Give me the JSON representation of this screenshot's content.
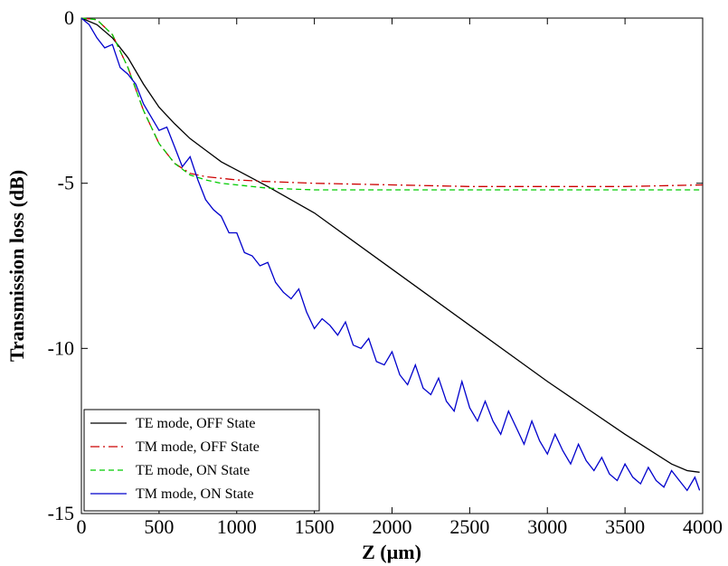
{
  "chart_data": {
    "type": "line",
    "xlabel": "Z (µm)",
    "ylabel": "Transmission loss (dB)",
    "xlim": [
      0,
      4000
    ],
    "ylim": [
      -15,
      0
    ],
    "xticks": [
      0,
      500,
      1000,
      1500,
      2000,
      2500,
      3000,
      3500,
      4000
    ],
    "yticks": [
      0,
      -5,
      -10,
      -15
    ],
    "xtick_labels": [
      "0",
      "500",
      "1000",
      "1500",
      "2000",
      "2500",
      "3000",
      "3500",
      "4000"
    ],
    "ytick_labels": [
      "0",
      "-5",
      "-10",
      "-15"
    ],
    "grid": false,
    "legend_position": "bottom-left",
    "series": [
      {
        "name": "TE mode, OFF State",
        "color": "#000000",
        "dash": "solid",
        "x": [
          0,
          100,
          200,
          300,
          400,
          500,
          600,
          700,
          800,
          900,
          1000,
          1200,
          1500,
          2000,
          2500,
          3000,
          3500,
          3800,
          3900,
          3980
        ],
        "y": [
          0,
          -0.2,
          -0.6,
          -1.2,
          -2.0,
          -2.7,
          -3.2,
          -3.65,
          -4.0,
          -4.35,
          -4.6,
          -5.1,
          -5.9,
          -7.6,
          -9.3,
          -11.0,
          -12.6,
          -13.5,
          -13.7,
          -13.75
        ]
      },
      {
        "name": "TM mode, OFF State",
        "color": "#cc0000",
        "dash": "dashdot",
        "x": [
          0,
          100,
          200,
          300,
          400,
          500,
          600,
          700,
          800,
          900,
          1000,
          1200,
          1500,
          2000,
          2500,
          3000,
          3500,
          4000
        ],
        "y": [
          0,
          -0.05,
          -0.5,
          -1.5,
          -2.8,
          -3.8,
          -4.4,
          -4.7,
          -4.8,
          -4.85,
          -4.9,
          -4.95,
          -5.0,
          -5.05,
          -5.1,
          -5.1,
          -5.1,
          -5.05
        ]
      },
      {
        "name": "TE mode, ON State",
        "color": "#00cc00",
        "dash": "dashed",
        "x": [
          0,
          100,
          200,
          300,
          400,
          500,
          600,
          700,
          800,
          900,
          1000,
          1200,
          1500,
          2000,
          2500,
          3000,
          3500,
          4000
        ],
        "y": [
          0,
          -0.05,
          -0.5,
          -1.5,
          -2.8,
          -3.8,
          -4.4,
          -4.75,
          -4.9,
          -5.0,
          -5.05,
          -5.15,
          -5.2,
          -5.2,
          -5.2,
          -5.2,
          -5.2,
          -5.2
        ]
      },
      {
        "name": "TM mode, ON State",
        "color": "#0000cc",
        "dash": "solid",
        "x": [
          0,
          50,
          100,
          150,
          200,
          250,
          300,
          350,
          400,
          450,
          500,
          550,
          600,
          650,
          700,
          750,
          800,
          850,
          900,
          950,
          1000,
          1050,
          1100,
          1150,
          1200,
          1250,
          1300,
          1350,
          1400,
          1450,
          1500,
          1550,
          1600,
          1650,
          1700,
          1750,
          1800,
          1850,
          1900,
          1950,
          2000,
          2050,
          2100,
          2150,
          2200,
          2250,
          2300,
          2350,
          2400,
          2450,
          2500,
          2550,
          2600,
          2650,
          2700,
          2750,
          2800,
          2850,
          2900,
          2950,
          3000,
          3050,
          3100,
          3150,
          3200,
          3250,
          3300,
          3350,
          3400,
          3450,
          3500,
          3550,
          3600,
          3650,
          3700,
          3750,
          3800,
          3850,
          3900,
          3950,
          3980
        ],
        "y": [
          0,
          -0.2,
          -0.6,
          -0.9,
          -0.8,
          -1.5,
          -1.7,
          -2.0,
          -2.6,
          -3.0,
          -3.4,
          -3.3,
          -3.9,
          -4.5,
          -4.2,
          -4.9,
          -5.5,
          -5.8,
          -6.0,
          -6.5,
          -6.5,
          -7.1,
          -7.2,
          -7.5,
          -7.4,
          -8.0,
          -8.3,
          -8.5,
          -8.2,
          -8.9,
          -9.4,
          -9.1,
          -9.3,
          -9.6,
          -9.2,
          -9.9,
          -10.0,
          -9.7,
          -10.4,
          -10.5,
          -10.1,
          -10.8,
          -11.1,
          -10.5,
          -11.2,
          -11.4,
          -10.9,
          -11.6,
          -11.9,
          -11.0,
          -11.8,
          -12.2,
          -11.6,
          -12.2,
          -12.6,
          -11.9,
          -12.4,
          -12.9,
          -12.2,
          -12.8,
          -13.2,
          -12.6,
          -13.1,
          -13.5,
          -12.9,
          -13.4,
          -13.7,
          -13.3,
          -13.8,
          -14.0,
          -13.5,
          -13.9,
          -14.1,
          -13.6,
          -14.0,
          -14.2,
          -13.7,
          -14.0,
          -14.3,
          -13.9,
          -14.3
        ]
      }
    ]
  }
}
